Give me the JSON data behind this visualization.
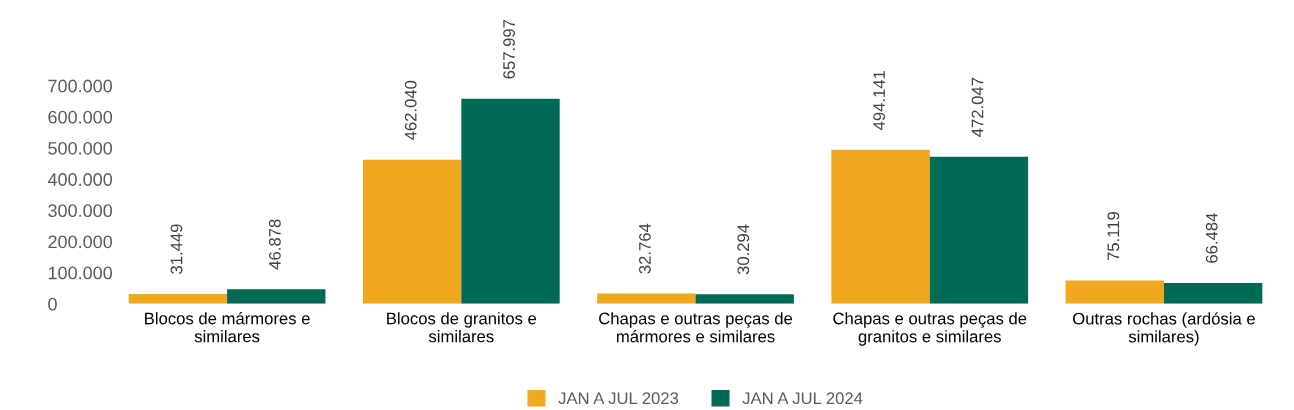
{
  "chart_data": {
    "type": "bar",
    "categories": [
      "Blocos de mármores e similares",
      "Blocos de granitos e similares",
      "Chapas e outras peças de mármores e similares",
      "Chapas e outras peças de granitos e similares",
      "Outras rochas (ardósia e similares)"
    ],
    "series": [
      {
        "name": "JAN A JUL 2023",
        "color": "#f0a91e",
        "values": [
          31449,
          462040,
          32764,
          494141,
          75119
        ],
        "value_labels": [
          "31.449",
          "462.040",
          "32.764",
          "494.141",
          "75.119"
        ]
      },
      {
        "name": "JAN A JUL 2024",
        "color": "#006b54",
        "values": [
          46878,
          657997,
          30294,
          472047,
          66484
        ],
        "value_labels": [
          "46.878",
          "657.997",
          "30.294",
          "472.047",
          "66.484"
        ]
      }
    ],
    "ylim": [
      0,
      700000
    ],
    "yticks": [
      0,
      {
        "value": 100000,
        "label": "100.000"
      },
      {
        "value": 200000,
        "label": "200.000"
      },
      {
        "value": 300000,
        "label": "300.000"
      },
      {
        "value": 400000,
        "label": "400.000"
      },
      {
        "value": 500000,
        "label": "500.000"
      },
      {
        "value": 600000,
        "label": "600.000"
      },
      {
        "value": 700000,
        "label": "700.000"
      }
    ],
    "grid": false,
    "legend": "bottom"
  }
}
